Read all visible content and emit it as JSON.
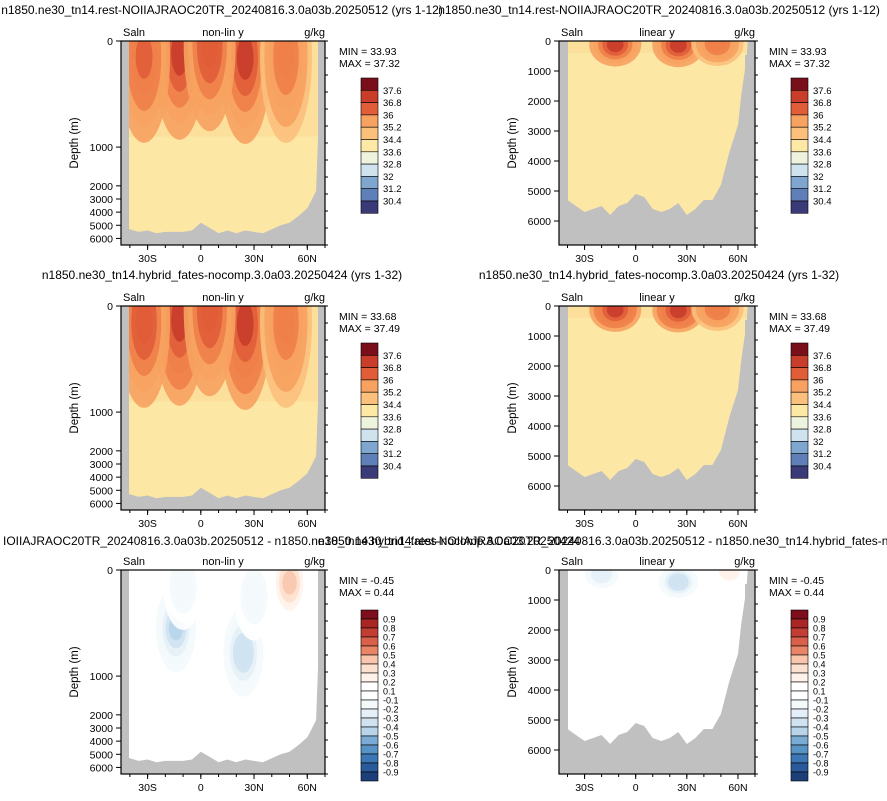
{
  "figure": {
    "panel_titles": [
      "n1850.ne30_tn14.rest-NOIIAJRAOC20TR_20240816.3.0a03b.20250512 (yrs 1-12)",
      "n1850.ne30_tn14.rest-NOIIAJRAOC20TR_20240816.3.0a03b.20250512 (yrs 1-12)",
      "n1850.ne30_tn14.hybrid_fates-nocomp.3.0a03.20250424 (yrs 1-32)",
      "n1850.ne30_tn14.hybrid_fates-nocomp.3.0a03.20250424 (yrs 1-32)",
      "IOIIAJRAOC20TR_20240816.3.0a03b.20250512 - n1850.ne30_tn14.hybrid_fates-nocomp.3.0a03.20250424",
      "n1850.ne30_tn14.rest-NOIIAJRAOC20TR_20240816.3.0a03b.20250512 - n1850.ne30_tn14.hybrid_fates-no"
    ],
    "colors": {
      "land": "#c0c0c0",
      "sal_palette": [
        "#3b3a78",
        "#4c5a9c",
        "#5f7fb8",
        "#7ea6cf",
        "#a6c8e0",
        "#cfe3ee",
        "#eef3dd",
        "#fbf3c4",
        "#fde8a6",
        "#fdd896",
        "#fbc07c",
        "#f7a261",
        "#ee8049",
        "#e05d38",
        "#c93d2b",
        "#a82424",
        "#7a0f1c"
      ],
      "diff_palette": [
        "#1c3f7a",
        "#2a5a9a",
        "#3d76b4",
        "#5893c6",
        "#79abd4",
        "#9ac2e0",
        "#b7d4ea",
        "#cfe2f1",
        "#e4eff7",
        "#f4f9fc",
        "#ffffff",
        "#ffffff",
        "#fff2ea",
        "#fde0cf",
        "#f9c6ad",
        "#f3a688",
        "#e98466",
        "#d9604a",
        "#c23e34",
        "#a82624",
        "#7d0f1c"
      ]
    }
  },
  "chart_data": [
    {
      "type": "heatmap",
      "title": "n1850.ne30_tn14.rest-NOIIAJRAOC20TR_20240816.3.0a03b.20250512 (yrs 1-12)",
      "left_label": "Saln",
      "center_label": "non-lin y",
      "right_label": "g/kg",
      "ylabel": "Depth (m)",
      "x_ticks": [
        "30S",
        "0",
        "30N",
        "60N"
      ],
      "y_ticks": [
        "0",
        "1000",
        "2000",
        "3000",
        "4000",
        "5000",
        "6000"
      ],
      "y_scale": "non-linear",
      "xlim": [
        -45,
        70
      ],
      "ylim": [
        6500,
        0
      ],
      "stats": {
        "min_label": "MIN = ",
        "min": "33.93",
        "max_label": "MAX = ",
        "max": "37.32"
      },
      "colorbar_labels": [
        "37.6",
        "36.8",
        "36",
        "35.2",
        "34.4",
        "33.6",
        "32.8",
        "32",
        "31.2",
        "30.4"
      ],
      "blobs": [
        {
          "x": -12,
          "depth": 120,
          "value": 37.3
        },
        {
          "x": 25,
          "depth": 160,
          "value": 37.2
        },
        {
          "x": 5,
          "depth": 40,
          "value": 36.9
        },
        {
          "x": -32,
          "depth": 150,
          "value": 36.8
        },
        {
          "x": 48,
          "depth": 150,
          "value": 36.3
        }
      ]
    },
    {
      "type": "heatmap",
      "title": "n1850.ne30_tn14.rest-NOIIAJRAOC20TR_20240816.3.0a03b.20250512 (yrs 1-12)",
      "left_label": "Saln",
      "center_label": "linear y",
      "right_label": "g/kg",
      "ylabel": "Depth (m)",
      "x_ticks": [
        "30S",
        "0",
        "30N",
        "60N"
      ],
      "y_ticks": [
        "0",
        "1000",
        "2000",
        "3000",
        "4000",
        "5000",
        "6000"
      ],
      "y_scale": "linear",
      "xlim": [
        -45,
        70
      ],
      "ylim": [
        6800,
        0
      ],
      "stats": {
        "min_label": "MIN = ",
        "min": "33.93",
        "max_label": "MAX = ",
        "max": "37.32"
      },
      "colorbar_labels": [
        "37.6",
        "36.8",
        "36",
        "35.2",
        "34.4",
        "33.6",
        "32.8",
        "32",
        "31.2",
        "30.4"
      ],
      "blobs": [
        {
          "x": -12,
          "depth": 120,
          "value": 37.3
        },
        {
          "x": 25,
          "depth": 140,
          "value": 37.2
        },
        {
          "x": 48,
          "depth": 100,
          "value": 36.3
        }
      ]
    },
    {
      "type": "heatmap",
      "title": "n1850.ne30_tn14.hybrid_fates-nocomp.3.0a03.20250424 (yrs 1-32)",
      "left_label": "Saln",
      "center_label": "non-lin y",
      "right_label": "g/kg",
      "ylabel": "Depth (m)",
      "x_ticks": [
        "30S",
        "0",
        "30N",
        "60N"
      ],
      "y_ticks": [
        "0",
        "1000",
        "2000",
        "3000",
        "4000",
        "5000",
        "6000"
      ],
      "y_scale": "non-linear",
      "xlim": [
        -45,
        70
      ],
      "ylim": [
        6500,
        0
      ],
      "stats": {
        "min_label": "MIN = ",
        "min": "33.68",
        "max_label": "MAX = ",
        "max": "37.49"
      },
      "colorbar_labels": [
        "37.6",
        "36.8",
        "36",
        "35.2",
        "34.4",
        "33.6",
        "32.8",
        "32",
        "31.2",
        "30.4"
      ],
      "blobs": [
        {
          "x": -12,
          "depth": 130,
          "value": 37.45
        },
        {
          "x": 25,
          "depth": 170,
          "value": 37.4
        },
        {
          "x": 5,
          "depth": 40,
          "value": 36.9
        },
        {
          "x": -32,
          "depth": 150,
          "value": 36.9
        },
        {
          "x": 48,
          "depth": 150,
          "value": 36.2
        }
      ]
    },
    {
      "type": "heatmap",
      "title": "n1850.ne30_tn14.hybrid_fates-nocomp.3.0a03.20250424 (yrs 1-32)",
      "left_label": "Saln",
      "center_label": "linear y",
      "right_label": "g/kg",
      "ylabel": "Depth (m)",
      "x_ticks": [
        "30S",
        "0",
        "30N",
        "60N"
      ],
      "y_ticks": [
        "0",
        "1000",
        "2000",
        "3000",
        "4000",
        "5000",
        "6000"
      ],
      "y_scale": "linear",
      "xlim": [
        -45,
        70
      ],
      "ylim": [
        6800,
        0
      ],
      "stats": {
        "min_label": "MIN = ",
        "min": "33.68",
        "max_label": "MAX = ",
        "max": "37.49"
      },
      "colorbar_labels": [
        "37.6",
        "36.8",
        "36",
        "35.2",
        "34.4",
        "33.6",
        "32.8",
        "32",
        "31.2",
        "30.4"
      ],
      "blobs": [
        {
          "x": -12,
          "depth": 130,
          "value": 37.45
        },
        {
          "x": 25,
          "depth": 150,
          "value": 37.4
        },
        {
          "x": 48,
          "depth": 100,
          "value": 36.2
        }
      ]
    },
    {
      "type": "heatmap",
      "title": "IOIIAJRAOC20TR_20240816.3.0a03b.20250512 - n1850.ne30_tn14.hybrid_fates-nocomp.3.0a03.20250424",
      "left_label": "Saln",
      "center_label": "non-lin y",
      "right_label": "g/kg",
      "ylabel": "Depth (m)",
      "x_ticks": [
        "30S",
        "0",
        "30N",
        "60N"
      ],
      "y_ticks": [
        "0",
        "1000",
        "2000",
        "3000",
        "4000",
        "5000",
        "6000"
      ],
      "y_scale": "non-linear",
      "xlim": [
        -45,
        70
      ],
      "ylim": [
        6500,
        0
      ],
      "stats": {
        "min_label": "MIN = ",
        "min": "-0.45",
        "max_label": "MAX = ",
        "max": "0.44"
      },
      "colorbar_labels": [
        "0.9",
        "0.8",
        "0.7",
        "0.6",
        "0.5",
        "0.4",
        "0.3",
        "0.2",
        "0.1",
        "-0.1",
        "-0.2",
        "-0.3",
        "-0.4",
        "-0.5",
        "-0.6",
        "-0.7",
        "-0.8",
        "-0.9"
      ],
      "blobs": [
        {
          "x": -14,
          "depth": 550,
          "value": -0.45
        },
        {
          "x": 24,
          "depth": 780,
          "value": -0.4
        },
        {
          "x": -10,
          "depth": 150,
          "value": -0.15
        },
        {
          "x": 30,
          "depth": 250,
          "value": -0.15
        },
        {
          "x": 50,
          "depth": 120,
          "value": 0.44
        }
      ]
    },
    {
      "type": "heatmap",
      "title": "n1850.ne30_tn14.rest-NOIIAJRAOC20TR_20240816.3.0a03b.20250512 - n1850.ne30_tn14.hybrid_fates-no",
      "left_label": "Saln",
      "center_label": "linear y",
      "right_label": "g/kg",
      "ylabel": "Depth (m)",
      "x_ticks": [
        "30S",
        "0",
        "30N",
        "60N"
      ],
      "y_ticks": [
        "0",
        "1000",
        "2000",
        "3000",
        "4000",
        "5000",
        "6000"
      ],
      "y_scale": "linear",
      "xlim": [
        -45,
        70
      ],
      "ylim": [
        6800,
        0
      ],
      "stats": {
        "min_label": "MIN = ",
        "min": "-0.45",
        "max_label": "MAX = ",
        "max": "0.44"
      },
      "colorbar_labels": [
        "0.9",
        "0.8",
        "0.7",
        "0.6",
        "0.5",
        "0.4",
        "0.3",
        "0.2",
        "0.1",
        "-0.1",
        "-0.2",
        "-0.3",
        "-0.4",
        "-0.5",
        "-0.6",
        "-0.7",
        "-0.8",
        "-0.9"
      ],
      "blobs": [
        {
          "x": -20,
          "depth": 150,
          "value": -0.25
        },
        {
          "x": 25,
          "depth": 400,
          "value": -0.4
        },
        {
          "x": 55,
          "depth": 60,
          "value": 0.3
        }
      ]
    }
  ]
}
